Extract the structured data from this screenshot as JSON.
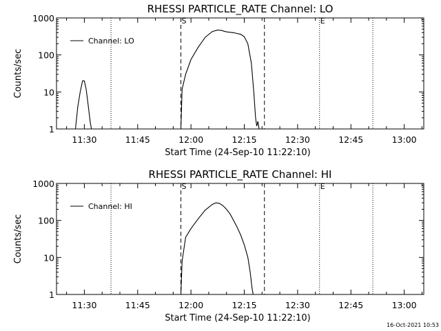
{
  "footer_timestamp": "16-Oct-2021 10:53",
  "chart_data": [
    {
      "type": "line",
      "title": "RHESSI PARTICLE_RATE Channel: LO",
      "xlabel": "Start Time (24-Sep-10 11:22:10)",
      "ylabel": "Counts/sec",
      "yscale": "log",
      "ylim": [
        1,
        1000
      ],
      "yticks": [
        {
          "value": 1,
          "label": "1"
        },
        {
          "value": 10,
          "label": "10"
        },
        {
          "value": 100,
          "label": "100"
        },
        {
          "value": 1000,
          "label": "1000"
        }
      ],
      "xlim": [
        "11:22:10",
        "13:05:30"
      ],
      "xticks": [
        {
          "time": "11:30",
          "label": "11:30"
        },
        {
          "time": "11:45",
          "label": "11:45"
        },
        {
          "time": "12:00",
          "label": "12:00"
        },
        {
          "time": "12:15",
          "label": "12:15"
        },
        {
          "time": "12:30",
          "label": "12:30"
        },
        {
          "time": "12:45",
          "label": "12:45"
        },
        {
          "time": "13:00",
          "label": "13:00"
        }
      ],
      "legend": {
        "label": "Channel: LO",
        "placement": "top-left"
      },
      "vlines": [
        {
          "time": "11:37:30",
          "style": "dotted"
        },
        {
          "time": "11:57:10",
          "style": "dashed",
          "label": "S"
        },
        {
          "time": "12:20:40",
          "style": "dashed"
        },
        {
          "time": "12:36:10",
          "style": "dotted",
          "label": "E"
        },
        {
          "time": "12:51:10",
          "style": "dotted"
        }
      ],
      "series": [
        {
          "name": "Channel: LO",
          "segments": [
            [
              {
                "t": "11:27:30",
                "y": 1
              },
              {
                "t": "11:28:10",
                "y": 4
              },
              {
                "t": "11:28:50",
                "y": 10
              },
              {
                "t": "11:29:30",
                "y": 20
              },
              {
                "t": "11:30:00",
                "y": 20
              },
              {
                "t": "11:30:30",
                "y": 12
              },
              {
                "t": "11:31:00",
                "y": 5
              },
              {
                "t": "11:31:40",
                "y": 1.5
              },
              {
                "t": "11:32:00",
                "y": 1
              }
            ],
            [
              {
                "t": "11:57:10",
                "y": 1
              },
              {
                "t": "11:57:30",
                "y": 12
              },
              {
                "t": "11:58:30",
                "y": 30
              },
              {
                "t": "12:00:00",
                "y": 75
              },
              {
                "t": "12:02:00",
                "y": 160
              },
              {
                "t": "12:04:00",
                "y": 300
              },
              {
                "t": "12:06:00",
                "y": 430
              },
              {
                "t": "12:07:30",
                "y": 470
              },
              {
                "t": "12:08:30",
                "y": 460
              },
              {
                "t": "12:10:00",
                "y": 420
              },
              {
                "t": "12:12:00",
                "y": 400
              },
              {
                "t": "12:14:00",
                "y": 360
              },
              {
                "t": "12:15:00",
                "y": 310
              },
              {
                "t": "12:16:00",
                "y": 200
              },
              {
                "t": "12:17:00",
                "y": 60
              },
              {
                "t": "12:17:40",
                "y": 10
              },
              {
                "t": "12:18:10",
                "y": 2
              },
              {
                "t": "12:18:30",
                "y": 1.2
              },
              {
                "t": "12:18:50",
                "y": 1.6
              },
              {
                "t": "12:19:10",
                "y": 1
              }
            ]
          ]
        }
      ]
    },
    {
      "type": "line",
      "title": "RHESSI PARTICLE_RATE Channel: HI",
      "xlabel": "Start Time (24-Sep-10 11:22:10)",
      "ylabel": "Counts/sec",
      "yscale": "log",
      "ylim": [
        1,
        1000
      ],
      "yticks": [
        {
          "value": 1,
          "label": "1"
        },
        {
          "value": 10,
          "label": "10"
        },
        {
          "value": 100,
          "label": "100"
        },
        {
          "value": 1000,
          "label": "1000"
        }
      ],
      "xlim": [
        "11:22:10",
        "13:05:30"
      ],
      "xticks": [
        {
          "time": "11:30",
          "label": "11:30"
        },
        {
          "time": "11:45",
          "label": "11:45"
        },
        {
          "time": "12:00",
          "label": "12:00"
        },
        {
          "time": "12:15",
          "label": "12:15"
        },
        {
          "time": "12:30",
          "label": "12:30"
        },
        {
          "time": "12:45",
          "label": "12:45"
        },
        {
          "time": "13:00",
          "label": "13:00"
        }
      ],
      "legend": {
        "label": "Channel: HI",
        "placement": "top-left"
      },
      "vlines": [
        {
          "time": "11:37:30",
          "style": "dotted"
        },
        {
          "time": "11:57:10",
          "style": "dashed",
          "label": "S"
        },
        {
          "time": "12:20:40",
          "style": "dashed"
        },
        {
          "time": "12:36:10",
          "style": "dotted",
          "label": "E"
        },
        {
          "time": "12:51:10",
          "style": "dotted"
        }
      ],
      "series": [
        {
          "name": "Channel: HI",
          "segments": [
            [
              {
                "t": "11:57:10",
                "y": 1
              },
              {
                "t": "11:57:30",
                "y": 8
              },
              {
                "t": "11:58:30",
                "y": 35
              },
              {
                "t": "12:00:00",
                "y": 60
              },
              {
                "t": "12:02:00",
                "y": 110
              },
              {
                "t": "12:04:00",
                "y": 190
              },
              {
                "t": "12:06:00",
                "y": 270
              },
              {
                "t": "12:07:00",
                "y": 300
              },
              {
                "t": "12:08:00",
                "y": 290
              },
              {
                "t": "12:09:00",
                "y": 250
              },
              {
                "t": "12:10:00",
                "y": 200
              },
              {
                "t": "12:11:00",
                "y": 150
              },
              {
                "t": "12:12:00",
                "y": 100
              },
              {
                "t": "12:13:00",
                "y": 65
              },
              {
                "t": "12:14:00",
                "y": 40
              },
              {
                "t": "12:15:00",
                "y": 22
              },
              {
                "t": "12:16:00",
                "y": 10
              },
              {
                "t": "12:16:40",
                "y": 4
              },
              {
                "t": "12:17:10",
                "y": 1.5
              },
              {
                "t": "12:17:30",
                "y": 1
              }
            ]
          ]
        }
      ]
    }
  ]
}
